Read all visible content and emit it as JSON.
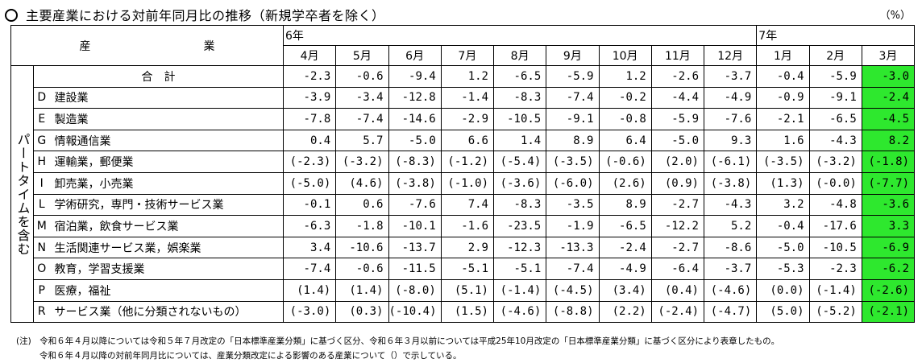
{
  "title": "主要産業における対前年同月比の推移（新規学卒者を除く）",
  "unit": "（%）",
  "header": {
    "industry_label": "産　業",
    "years": [
      {
        "label": "6年",
        "span": 9
      },
      {
        "label": "7年",
        "span": 3
      }
    ],
    "months": [
      "4月",
      "5月",
      "6月",
      "7月",
      "8月",
      "9月",
      "10月",
      "11月",
      "12月",
      "1月",
      "2月",
      "3月"
    ]
  },
  "side_label": "パートタイムを含む",
  "total_row": {
    "label": "合　計",
    "values": [
      "-2.3",
      "-0.6",
      "-9.4",
      "1.2",
      "-6.5",
      "-5.9",
      "1.2",
      "-2.6",
      "-3.7",
      "-0.4",
      "-5.9",
      "-3.0"
    ]
  },
  "rows": [
    {
      "code": "D",
      "name": "建設業",
      "values": [
        "-3.9",
        "-3.4",
        "-12.8",
        "-1.4",
        "-8.3",
        "-7.4",
        "-0.2",
        "-4.4",
        "-4.9",
        "-0.9",
        "-9.1",
        "-2.4"
      ]
    },
    {
      "code": "E",
      "name": "製造業",
      "values": [
        "-7.8",
        "-7.4",
        "-14.6",
        "-2.9",
        "-10.5",
        "-9.1",
        "-0.8",
        "-5.9",
        "-7.6",
        "-2.1",
        "-6.5",
        "-4.5"
      ]
    },
    {
      "code": "G",
      "name": "情報通信業",
      "values": [
        "0.4",
        "5.7",
        "-5.0",
        "6.6",
        "1.4",
        "8.9",
        "6.4",
        "-5.0",
        "9.3",
        "1.6",
        "-4.3",
        "8.2"
      ]
    },
    {
      "code": "H",
      "name": "運輸業，郵便業",
      "values": [
        "(-2.3)",
        "(-3.2)",
        "(-8.3)",
        "(-1.2)",
        "(-5.4)",
        "(-3.5)",
        "(-0.6)",
        "(2.0)",
        "(-6.1)",
        "(-3.5)",
        "(-3.2)",
        "(-1.8)"
      ]
    },
    {
      "code": "I",
      "name": "卸売業，小売業",
      "values": [
        "(-5.0)",
        "(4.6)",
        "(-3.8)",
        "(-1.0)",
        "(-3.6)",
        "(-6.0)",
        "(2.6)",
        "(0.9)",
        "(-3.8)",
        "(1.3)",
        "(-0.0)",
        "(-7.7)"
      ]
    },
    {
      "code": "L",
      "name": "学術研究，専門・技術サービス業",
      "values": [
        "-0.1",
        "0.6",
        "-7.6",
        "7.4",
        "-8.3",
        "-3.5",
        "8.9",
        "-2.7",
        "-4.3",
        "3.2",
        "-4.8",
        "-3.6"
      ]
    },
    {
      "code": "M",
      "name": "宿泊業，飲食サービス業",
      "values": [
        "-6.3",
        "-1.8",
        "-10.1",
        "-1.6",
        "-23.5",
        "-1.9",
        "-6.5",
        "-12.2",
        "5.2",
        "-0.4",
        "-17.6",
        "3.3"
      ]
    },
    {
      "code": "N",
      "name": "生活関連サービス業，娯楽業",
      "values": [
        "3.4",
        "-10.6",
        "-13.7",
        "2.9",
        "-12.3",
        "-13.3",
        "-2.4",
        "-2.7",
        "-8.6",
        "-5.0",
        "-10.5",
        "-6.9"
      ]
    },
    {
      "code": "O",
      "name": "教育，学習支援業",
      "values": [
        "-7.4",
        "-0.6",
        "-11.5",
        "-5.1",
        "-5.1",
        "-7.4",
        "-4.9",
        "-6.4",
        "-3.7",
        "-5.3",
        "-2.3",
        "-6.2"
      ]
    },
    {
      "code": "P",
      "name": "医療，福祉",
      "values": [
        "(1.4)",
        "(1.4)",
        "(-8.0)",
        "(5.1)",
        "(-1.4)",
        "(-4.5)",
        "(3.4)",
        "(0.4)",
        "(-4.6)",
        "(0.0)",
        "(-1.4)",
        "(-2.6)"
      ]
    },
    {
      "code": "R",
      "name": "サービス業（他に分類されないもの）",
      "values": [
        "(-3.0)",
        "(0.3)",
        "(-10.4)",
        "(1.5)",
        "(-4.6)",
        "(-8.8)",
        "(2.2)",
        "(-2.4)",
        "(-4.7)",
        "(5.0)",
        "(-5.2)",
        "(-2.1)"
      ]
    }
  ],
  "highlight_color": "#2ee82e",
  "notes": [
    "(注)　令和６年４月以降については令和５年７月改定の「日本標準産業分類」に基づく区分、令和６年３月以前については平成25年10月改定の「日本標準産業分類」に基づく区分により表章したもの。",
    "令和６年４月以降の対前年同月比については、産業分類改定による影響のある産業について（）で示している。"
  ]
}
